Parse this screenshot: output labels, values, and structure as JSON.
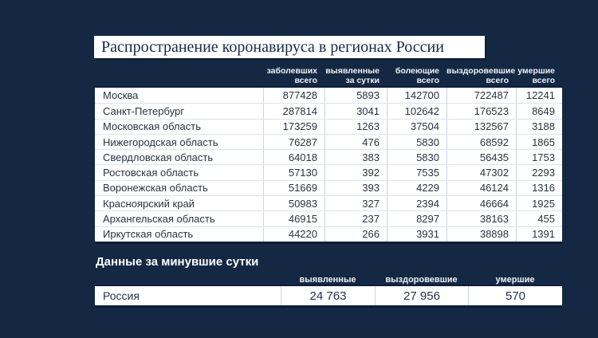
{
  "title": "Распространение коронавируса в регионах России",
  "chart_data": {
    "type": "table",
    "tables": [
      {
        "name": "regions-cumulative",
        "columns": [
          {
            "line1": "заболевших",
            "line2": "всего"
          },
          {
            "line1": "выявленные",
            "line2": "за сутки"
          },
          {
            "line1": "болеющие",
            "line2": "всего"
          },
          {
            "line1": "выздоровевшие",
            "line2": "всего"
          },
          {
            "line1": "умершие",
            "line2": "всего"
          }
        ],
        "rows": [
          {
            "region": "Москва",
            "values": [
              "877428",
              "5893",
              "142700",
              "722487",
              "12241"
            ]
          },
          {
            "region": "Санкт-Петербург",
            "values": [
              "287814",
              "3041",
              "102642",
              "176523",
              "8649"
            ]
          },
          {
            "region": "Московская область",
            "values": [
              "173259",
              "1263",
              "37504",
              "132567",
              "3188"
            ]
          },
          {
            "region": "Нижегородская область",
            "values": [
              "76287",
              "476",
              "5830",
              "68592",
              "1865"
            ]
          },
          {
            "region": "Свердловская область",
            "values": [
              "64018",
              "383",
              "5830",
              "56435",
              "1753"
            ]
          },
          {
            "region": "Ростовская область",
            "values": [
              "57130",
              "392",
              "7535",
              "47302",
              "2293"
            ]
          },
          {
            "region": "Воронежская область",
            "values": [
              "51669",
              "393",
              "4229",
              "46124",
              "1316"
            ]
          },
          {
            "region": "Красноярский край",
            "values": [
              "50983",
              "327",
              "2394",
              "46664",
              "1925"
            ]
          },
          {
            "region": "Архангельская область",
            "values": [
              "46915",
              "237",
              "8297",
              "38163",
              "455"
            ]
          },
          {
            "region": "Иркутская область",
            "values": [
              "44220",
              "266",
              "3931",
              "38898",
              "1391"
            ]
          }
        ]
      },
      {
        "name": "daily-russia",
        "heading": "Данные за минувшие сутки",
        "columns": [
          "выявленные",
          "выздоровевшие",
          "умершие"
        ],
        "rows": [
          {
            "region": "Россия",
            "values": [
              "24 763",
              "27 956",
              "570"
            ]
          }
        ]
      }
    ]
  },
  "colors": {
    "background": "#142843",
    "row_bg": "#ffffff",
    "table_text": "#2b3240",
    "header_text": "#eef2f7",
    "title_text": "#16294a",
    "row_separator": "#dde3ec",
    "column_separator": "#ccd5e2",
    "table_border": "#0d1d38"
  }
}
